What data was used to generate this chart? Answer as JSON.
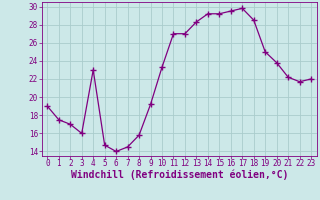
{
  "x": [
    0,
    1,
    2,
    3,
    4,
    5,
    6,
    7,
    8,
    9,
    10,
    11,
    12,
    13,
    14,
    15,
    16,
    17,
    18,
    19,
    20,
    21,
    22,
    23
  ],
  "y": [
    19.0,
    17.5,
    17.0,
    16.0,
    23.0,
    14.7,
    14.0,
    14.5,
    15.8,
    19.2,
    23.3,
    27.0,
    27.0,
    28.3,
    29.2,
    29.2,
    29.5,
    29.8,
    28.5,
    25.0,
    23.8,
    22.2,
    21.7,
    22.0
  ],
  "line_color": "#800080",
  "marker": "+",
  "marker_size": 4,
  "marker_lw": 1.0,
  "bg_color": "#cce8e8",
  "grid_color": "#aacccc",
  "xlabel": "Windchill (Refroidissement éolien,°C)",
  "ylabel": "",
  "xlim": [
    -0.5,
    23.5
  ],
  "ylim": [
    13.5,
    30.5
  ],
  "yticks": [
    14,
    16,
    18,
    20,
    22,
    24,
    26,
    28,
    30
  ],
  "xticks": [
    0,
    1,
    2,
    3,
    4,
    5,
    6,
    7,
    8,
    9,
    10,
    11,
    12,
    13,
    14,
    15,
    16,
    17,
    18,
    19,
    20,
    21,
    22,
    23
  ],
  "tick_color": "#800080",
  "tick_fontsize": 5.5,
  "xlabel_fontsize": 7.0
}
